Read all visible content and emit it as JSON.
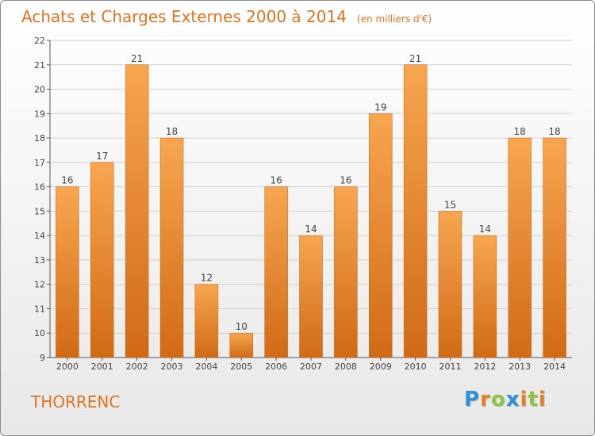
{
  "title": "Achats et Charges Externes 2000 à 2014",
  "unit": "(en milliers d'€)",
  "town": "THORRENC",
  "brand": {
    "letters": [
      "P",
      "r",
      "o",
      "x",
      "i",
      "t",
      "i"
    ],
    "colors": [
      "#2f8fd8",
      "#e67e22",
      "#8cc63f",
      "#2f8fd8",
      "#e67e22",
      "#8cc63f",
      "#e67e22"
    ]
  },
  "colors": {
    "accent": "#e0731f",
    "bar_top": "#f7a64f",
    "bar_bottom": "#d16a16",
    "grid": "#cfcfcf"
  },
  "chart_data": {
    "type": "bar",
    "title": "Achats et Charges Externes 2000 à 2014",
    "categories": [
      "2000",
      "2001",
      "2002",
      "2003",
      "2004",
      "2005",
      "2006",
      "2007",
      "2008",
      "2009",
      "2010",
      "2011",
      "2012",
      "2013",
      "2014"
    ],
    "values": [
      16,
      17,
      21,
      18,
      12,
      10,
      16,
      14,
      16,
      19,
      21,
      15,
      14,
      18,
      18
    ],
    "ylim": [
      9,
      22
    ],
    "yticks": [
      9,
      10,
      11,
      12,
      13,
      14,
      15,
      16,
      17,
      18,
      19,
      20,
      21,
      22
    ],
    "grid": true,
    "data_labels": true
  }
}
